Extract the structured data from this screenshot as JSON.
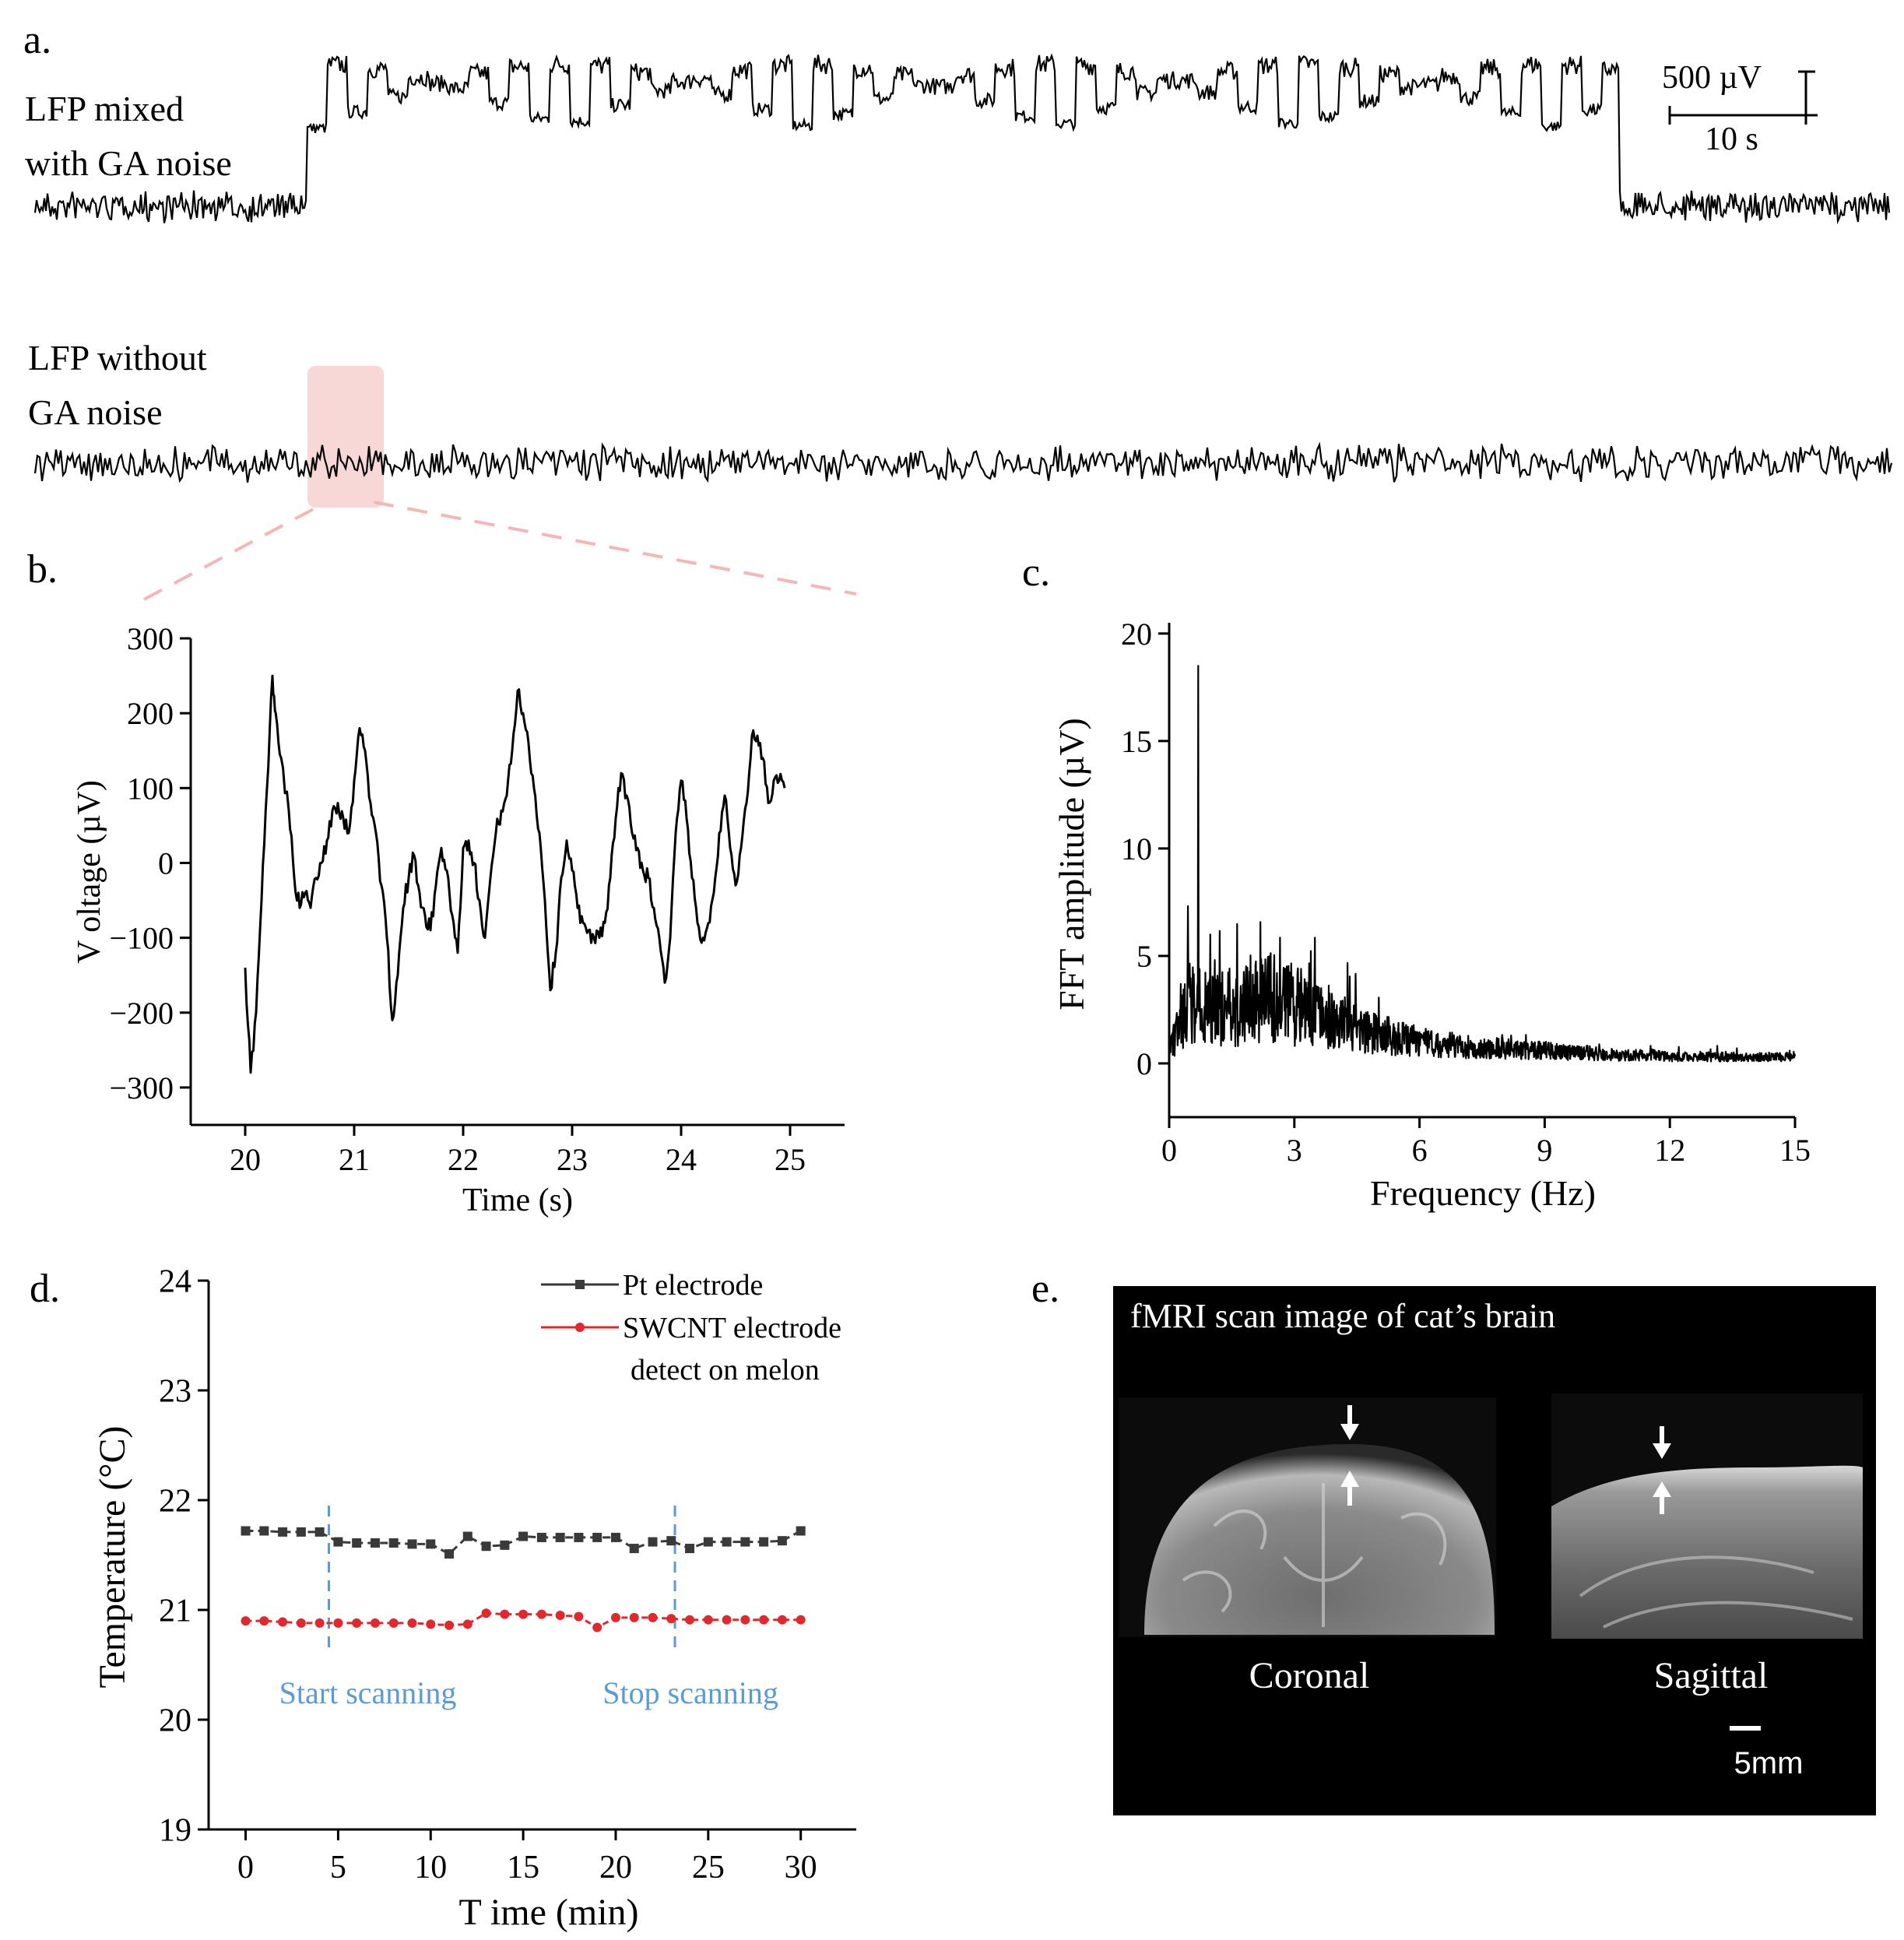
{
  "panel_labels": {
    "a": "a.",
    "b": "b.",
    "c": "c.",
    "d": "d.",
    "e": "e."
  },
  "panel_a": {
    "trace1_label_line1": "LFP mixed",
    "trace1_label_line2": "with  GA noise",
    "trace2_label_line1": "LFP without",
    "trace2_label_line2": "GA noise",
    "scale_voltage": "500 µV",
    "scale_time": "10 s"
  },
  "panel_e": {
    "title": "fMRI  scan  image  of  cat’s  brain",
    "coronal_label": "Coronal",
    "sagittal_label": "Sagittal",
    "scale_label": "5mm"
  },
  "colors": {
    "trace": "#000000",
    "pt_series": "#3a3a3a",
    "swcnt_series": "#e0282d",
    "annotation": "#5b9bd5",
    "highlight": "#f6c9c9"
  },
  "chart_data": [
    {
      "id": "b",
      "type": "line",
      "title": "",
      "xlabel": "Time (s)",
      "ylabel": "V oltage (µV)",
      "xlim": [
        19.5,
        25.5
      ],
      "ylim": [
        -350,
        300
      ],
      "xticks": [
        20,
        21,
        22,
        23,
        24,
        25
      ],
      "xtick_labels": [
        "20",
        "21",
        "22",
        "23",
        "24",
        "25"
      ],
      "yticks": [
        300,
        200,
        100,
        0,
        -100,
        -200,
        -300
      ],
      "ytick_labels": [
        "300",
        "200",
        "100",
        "0",
        "−100",
        "−200",
        "−300"
      ],
      "x": [
        20.0,
        20.05,
        20.1,
        20.15,
        20.2,
        20.25,
        20.28,
        20.33,
        20.4,
        20.45,
        20.5,
        20.55,
        20.6,
        20.65,
        20.7,
        20.75,
        20.8,
        20.85,
        20.9,
        20.95,
        21.0,
        21.05,
        21.1,
        21.15,
        21.2,
        21.25,
        21.3,
        21.35,
        21.4,
        21.45,
        21.5,
        21.55,
        21.6,
        21.65,
        21.7,
        21.75,
        21.8,
        21.85,
        21.9,
        21.95,
        22.0,
        22.05,
        22.1,
        22.15,
        22.2,
        22.25,
        22.3,
        22.35,
        22.4,
        22.45,
        22.5,
        22.55,
        22.6,
        22.65,
        22.7,
        22.75,
        22.8,
        22.85,
        22.9,
        22.95,
        23.0,
        23.05,
        23.1,
        23.15,
        23.2,
        23.25,
        23.3,
        23.35,
        23.4,
        23.45,
        23.5,
        23.55,
        23.6,
        23.65,
        23.7,
        23.75,
        23.8,
        23.85,
        23.9,
        23.95,
        24.0,
        24.05,
        24.1,
        24.15,
        24.2,
        24.25,
        24.3,
        24.35,
        24.4,
        24.45,
        24.5,
        24.55,
        24.6,
        24.65,
        24.7,
        24.75,
        24.8,
        24.85,
        24.9,
        24.95
      ],
      "values": [
        -140,
        -280,
        -200,
        -50,
        100,
        250,
        200,
        140,
        70,
        -20,
        -60,
        -40,
        -60,
        -20,
        0,
        30,
        70,
        80,
        60,
        40,
        110,
        180,
        150,
        80,
        40,
        -30,
        -100,
        -210,
        -150,
        -60,
        -20,
        10,
        -40,
        -70,
        -90,
        -30,
        20,
        -10,
        -70,
        -120,
        20,
        30,
        0,
        -50,
        -100,
        -20,
        40,
        70,
        90,
        150,
        230,
        200,
        160,
        100,
        40,
        -50,
        -170,
        -120,
        -20,
        30,
        -10,
        -60,
        -80,
        -90,
        -100,
        -100,
        -80,
        -20,
        60,
        120,
        90,
        40,
        20,
        -10,
        -20,
        -60,
        -100,
        -160,
        -100,
        40,
        110,
        60,
        -20,
        -80,
        -100,
        -80,
        -40,
        40,
        90,
        20,
        -30,
        20,
        80,
        170,
        170,
        140,
        80,
        110,
        110,
        100
      ]
    },
    {
      "id": "c",
      "type": "line",
      "title": "",
      "xlabel": "Frequency (Hz)",
      "ylabel": "FFT amplitude (µV)",
      "xlim": [
        0,
        15
      ],
      "ylim": [
        -2.5,
        20.5
      ],
      "xticks": [
        0,
        3,
        6,
        9,
        12,
        15
      ],
      "xtick_labels": [
        "0",
        "3",
        "6",
        "9",
        "12",
        "15"
      ],
      "yticks": [
        0,
        5,
        10,
        15,
        20
      ],
      "ytick_labels": [
        "0",
        "5",
        "10",
        "15",
        "20"
      ],
      "peak": {
        "x": 0.7,
        "value": 18.5
      },
      "x": [
        0,
        0.5,
        1,
        1.5,
        2,
        2.5,
        3,
        3.5,
        4,
        4.5,
        5,
        5.5,
        6,
        6.5,
        7,
        7.5,
        8,
        8.5,
        9,
        9.5,
        10,
        10.5,
        11,
        11.5,
        12,
        12.5,
        13,
        13.5,
        14,
        14.5,
        15
      ],
      "values": [
        0.6,
        2.8,
        2.6,
        2.5,
        2.8,
        3.0,
        2.7,
        2.4,
        2.0,
        1.7,
        1.4,
        1.2,
        1.0,
        0.9,
        0.8,
        0.7,
        0.7,
        0.6,
        0.6,
        0.5,
        0.5,
        0.4,
        0.4,
        0.4,
        0.3,
        0.3,
        0.3,
        0.3,
        0.3,
        0.3,
        0.3
      ]
    },
    {
      "id": "d",
      "type": "line",
      "title": "",
      "xlabel": "T ime (min)",
      "ylabel": "Temperature (°C)",
      "xlim": [
        -2,
        33
      ],
      "ylim": [
        19,
        24
      ],
      "xticks": [
        0,
        5,
        10,
        15,
        20,
        25,
        30
      ],
      "xtick_labels": [
        "0",
        "5",
        "10",
        "15",
        "20",
        "25",
        "30"
      ],
      "yticks": [
        19,
        20,
        21,
        22,
        23,
        24
      ],
      "ytick_labels": [
        "19",
        "20",
        "21",
        "22",
        "23",
        "24"
      ],
      "x": [
        0,
        1,
        2,
        3,
        4,
        5,
        6,
        7,
        8,
        9,
        10,
        11,
        12,
        13,
        14,
        15,
        16,
        17,
        18,
        19,
        20,
        21,
        22,
        23,
        24,
        25,
        26,
        27,
        28,
        29,
        30
      ],
      "series": [
        {
          "name": "Pt electrode",
          "values": [
            21.72,
            21.72,
            21.71,
            21.71,
            21.71,
            21.62,
            21.61,
            21.61,
            21.61,
            21.6,
            21.6,
            21.51,
            21.67,
            21.58,
            21.59,
            21.67,
            21.66,
            21.66,
            21.66,
            21.66,
            21.66,
            21.56,
            21.62,
            21.63,
            21.56,
            21.62,
            21.62,
            21.62,
            21.62,
            21.63,
            21.72
          ]
        },
        {
          "name": "SWCNT electrode",
          "values": [
            20.9,
            20.9,
            20.89,
            20.88,
            20.88,
            20.88,
            20.88,
            20.88,
            20.88,
            20.88,
            20.87,
            20.86,
            20.87,
            20.97,
            20.96,
            20.96,
            20.96,
            20.95,
            20.94,
            20.84,
            20.93,
            20.93,
            20.93,
            20.92,
            20.91,
            20.91,
            20.91,
            20.91,
            20.91,
            20.91,
            20.91
          ]
        }
      ],
      "legend_note": "detect on melon",
      "annotations": [
        {
          "x": 4.5,
          "text": "Start scanning"
        },
        {
          "x": 23.2,
          "text": "Stop scanning"
        }
      ]
    }
  ]
}
